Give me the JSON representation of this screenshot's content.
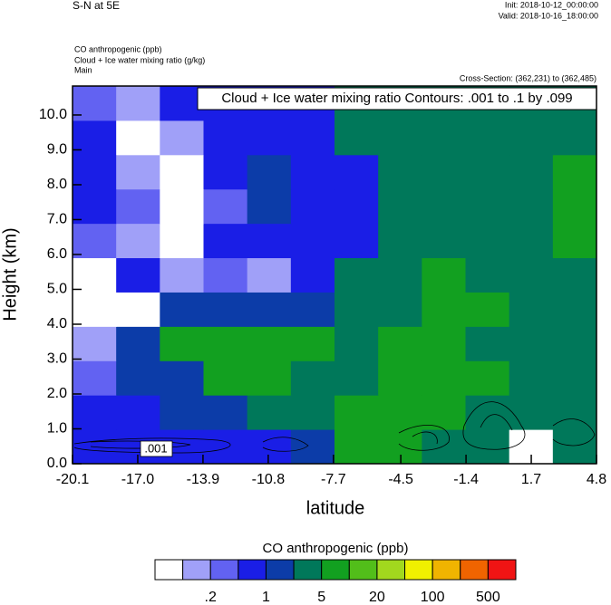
{
  "chart_data": {
    "type": "contour",
    "title": "S-N at 5E",
    "init": "Init: 2018-10-12_00:00:00",
    "valid": "Valid: 2018-10-16_18:00:00",
    "field_label": "CO anthropogenic   (ppb)",
    "contour_label": "Cloud + Ice water mixing ratio   (g/kg)",
    "domain": "Main",
    "cross_section": "Cross-Section: (362,231) to (362,485)",
    "contour_info": "Cloud + Ice water mixing ratio Contours: .001 to .1 by .099",
    "contour_annotation": ".001",
    "x_label": "latitude",
    "y_label": "Height (km)",
    "xlim": [
      -20.1,
      4.8
    ],
    "ylim": [
      0,
      10.83
    ],
    "xticks": [
      -20.1,
      {
        "value": -17,
        "label": "-17.0"
      },
      -13.9,
      -10.8,
      -7.7,
      -4.5,
      -1.4,
      1.7,
      4.8
    ],
    "yticks": [
      {
        "value": 0,
        "label": "0.0"
      },
      {
        "value": 1,
        "label": "1.0"
      },
      {
        "value": 2,
        "label": "2.0"
      },
      {
        "value": 3,
        "label": "3.0"
      },
      {
        "value": 4,
        "label": "4.0"
      },
      {
        "value": 5,
        "label": "5.0"
      },
      {
        "value": 6,
        "label": "6.0"
      },
      {
        "value": 7,
        "label": "7.0"
      },
      {
        "value": 8,
        "label": "8.0"
      },
      {
        "value": 9,
        "label": "9.0"
      },
      {
        "value": 10,
        "label": "10.0"
      }
    ],
    "z": [
      [
        0.7,
        0.7,
        0.7,
        0.7,
        0.7,
        1.5,
        7,
        7,
        3.5,
        3.5,
        0.05,
        3.5
      ],
      [
        0.7,
        0.7,
        1.5,
        1.5,
        3.5,
        3.5,
        7,
        7,
        7,
        3.5,
        3.5,
        3.5
      ],
      [
        0.3,
        1.5,
        1.5,
        7,
        7,
        3.5,
        3.5,
        7,
        7,
        7,
        3.5,
        3.5
      ],
      [
        0.15,
        1.5,
        7,
        7,
        7,
        7,
        3.5,
        7,
        7,
        3.5,
        3.5,
        3.5
      ],
      [
        0.05,
        0.05,
        1.5,
        1.5,
        1.5,
        1.5,
        3.5,
        3.5,
        7,
        7,
        3.5,
        3.5
      ],
      [
        0.05,
        0.7,
        0.15,
        0.3,
        0.15,
        0.7,
        3.5,
        3.5,
        7,
        3.5,
        3.5,
        3.5
      ],
      [
        0.3,
        0.15,
        0.05,
        0.7,
        0.7,
        0.7,
        0.7,
        3.5,
        3.5,
        3.5,
        3.5,
        7
      ],
      [
        0.7,
        0.3,
        0.05,
        0.3,
        1.5,
        0.7,
        0.7,
        3.5,
        3.5,
        3.5,
        3.5,
        7
      ],
      [
        0.7,
        0.15,
        0.05,
        0.7,
        1.5,
        0.7,
        0.7,
        3.5,
        3.5,
        3.5,
        3.5,
        7
      ],
      [
        0.7,
        0.05,
        0.15,
        0.7,
        0.7,
        0.7,
        3.5,
        3.5,
        3.5,
        3.5,
        3.5,
        3.5
      ],
      [
        0.3,
        0.15,
        0.7,
        0.7,
        0.7,
        0.7,
        3.5,
        3.5,
        3.5,
        3.5,
        3.5,
        3.5
      ]
    ],
    "colorbar": {
      "title": "CO anthropogenic  (ppb)",
      "colors": [
        "#ffffff",
        "#a0a0f8",
        "#6262f2",
        "#1a1ee6",
        "#0c3ca8",
        "#00785a",
        "#12a020",
        "#52be1a",
        "#a2d81e",
        "#f0f000",
        "#f0b400",
        "#f06400",
        "#f01414"
      ],
      "ticks": [
        {
          "value": 0.2,
          "label": ".2"
        },
        1,
        5,
        20,
        100,
        500
      ]
    }
  }
}
